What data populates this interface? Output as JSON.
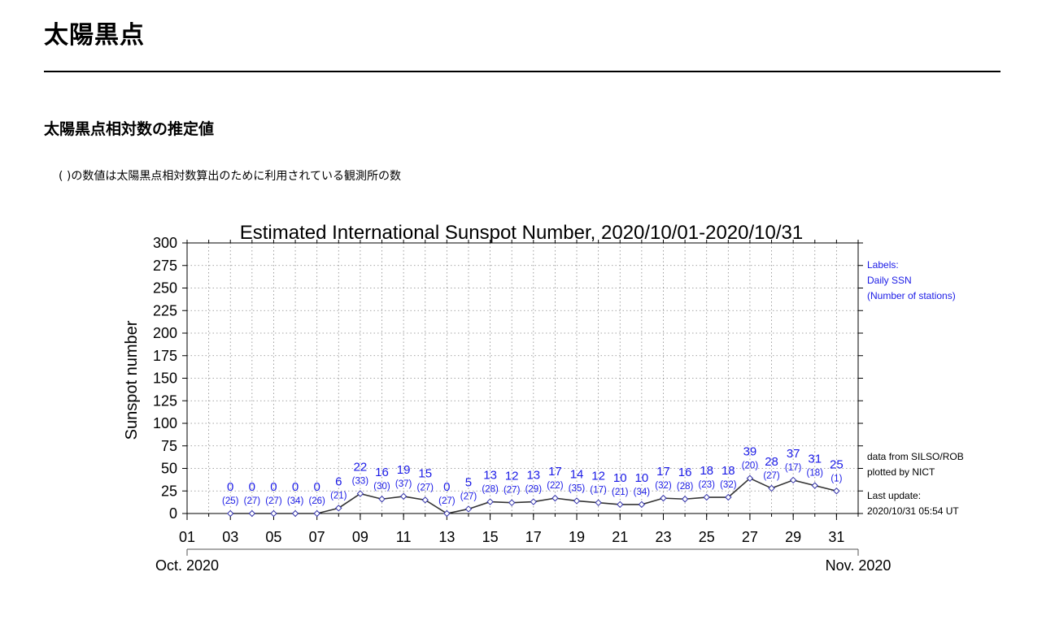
{
  "page": {
    "title": "太陽黒点",
    "section_title": "太陽黒点相対数の推定値",
    "note": "( )の数値は太陽黒点相対数算出のために利用されている観測所の数"
  },
  "chart_data": {
    "type": "line",
    "title": "Estimated International Sunspot Number, 2020/10/01-2020/10/31",
    "xlabel": "",
    "ylabel": "Sunspot number",
    "ylim": [
      0,
      300
    ],
    "yticks": [
      0,
      25,
      50,
      75,
      100,
      125,
      150,
      175,
      200,
      225,
      250,
      275,
      300
    ],
    "xlim": [
      1,
      32
    ],
    "xticks": [
      "01",
      "03",
      "05",
      "07",
      "09",
      "11",
      "13",
      "15",
      "17",
      "19",
      "21",
      "23",
      "25",
      "27",
      "29",
      "31"
    ],
    "month_labels": [
      "Oct. 2020",
      "Nov. 2020"
    ],
    "grid": true,
    "line_color": "#333333",
    "label_color": "#1a1ae6",
    "x": [
      3,
      4,
      5,
      6,
      7,
      8,
      9,
      10,
      11,
      12,
      13,
      14,
      15,
      16,
      17,
      18,
      19,
      20,
      21,
      22,
      23,
      24,
      25,
      26,
      27,
      28,
      29,
      30,
      31
    ],
    "series": [
      {
        "values": [
          0,
          0,
          0,
          0,
          0,
          6,
          22,
          16,
          19,
          15,
          0,
          5,
          13,
          12,
          13,
          17,
          14,
          12,
          10,
          10,
          17,
          16,
          18,
          18,
          39,
          28,
          37,
          31,
          25
        ],
        "stations": [
          25,
          27,
          27,
          34,
          26,
          21,
          33,
          30,
          37,
          27,
          27,
          27,
          28,
          27,
          29,
          22,
          35,
          17,
          21,
          34,
          32,
          28,
          23,
          32,
          20,
          27,
          17,
          18,
          1
        ]
      }
    ],
    "legend": [
      "Labels:",
      "Daily SSN",
      "(Number of stations)"
    ],
    "legend_placement": "right-top",
    "credits": [
      "data from SILSO/ROB",
      "plotted by NICT",
      "Last update:",
      "2020/10/31 05:54 UT"
    ]
  }
}
